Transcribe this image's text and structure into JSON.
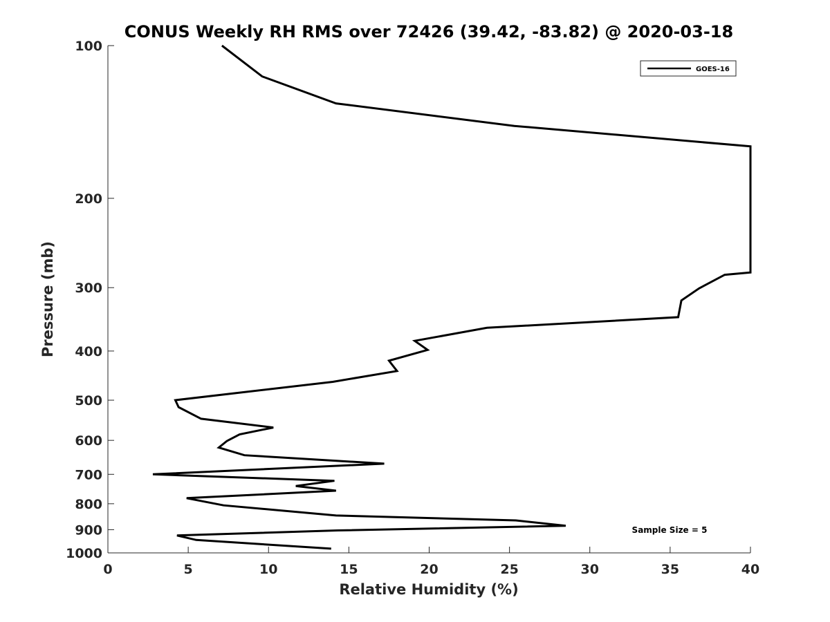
{
  "chart_data": {
    "type": "line",
    "title": "CONUS Weekly RH RMS over 72426 (39.42, -83.82) @ 2020-03-18",
    "xlabel": "Relative Humidity (%)",
    "ylabel": "Pressure (mb)",
    "xlim": [
      0,
      40
    ],
    "ylim": [
      100,
      1000
    ],
    "y_scale": "log",
    "y_reversed": true,
    "xticks": [
      0,
      5,
      10,
      15,
      20,
      25,
      30,
      35,
      40
    ],
    "yticks": [
      100,
      200,
      300,
      400,
      500,
      600,
      700,
      800,
      900,
      1000
    ],
    "grid": false,
    "legend_position": "top-right",
    "annotation": "Sample Size = 5",
    "series": [
      {
        "name": "GOES-16",
        "color": "#000000",
        "points": [
          [
            7.1,
            100
          ],
          [
            9.6,
            115
          ],
          [
            14.2,
            130
          ],
          [
            25.3,
            144
          ],
          [
            40,
            158
          ],
          [
            40,
            280
          ],
          [
            38.4,
            283
          ],
          [
            36.8,
            301
          ],
          [
            35.7,
            318
          ],
          [
            35.5,
            343
          ],
          [
            23.6,
            360
          ],
          [
            19.1,
            382
          ],
          [
            19.9,
            398
          ],
          [
            17.5,
            418
          ],
          [
            18.0,
            438
          ],
          [
            14.0,
            460
          ],
          [
            4.2,
            500
          ],
          [
            4.4,
            516
          ],
          [
            5.8,
            544
          ],
          [
            10.3,
            566
          ],
          [
            8.2,
            584
          ],
          [
            7.4,
            602
          ],
          [
            6.9,
            620
          ],
          [
            8.5,
            642
          ],
          [
            17.2,
            667
          ],
          [
            2.8,
            700
          ],
          [
            14.1,
            721
          ],
          [
            11.7,
            738
          ],
          [
            14.2,
            754
          ],
          [
            4.9,
            780
          ],
          [
            7.2,
            806
          ],
          [
            14.2,
            844
          ],
          [
            25.4,
            863
          ],
          [
            28.5,
            884
          ],
          [
            14.3,
            903
          ],
          [
            4.3,
            924
          ],
          [
            5.5,
            943
          ],
          [
            13.9,
            981
          ]
        ]
      }
    ]
  }
}
